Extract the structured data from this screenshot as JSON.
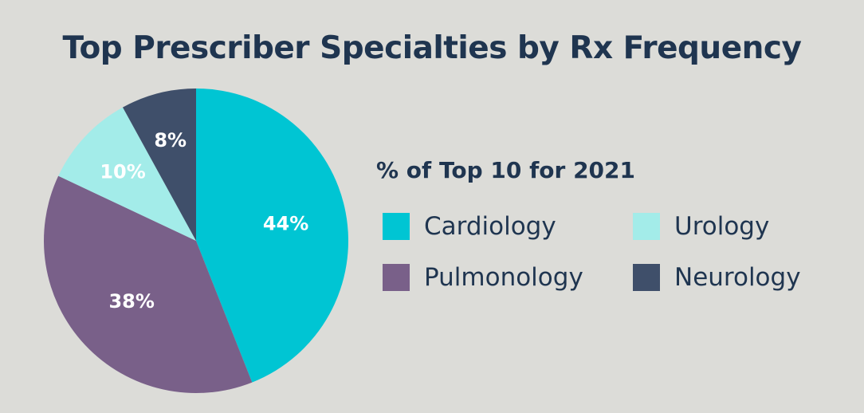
{
  "title": "Top Prescriber Specialties by Rx Frequency",
  "legend_title": "% of Top 10 for 2021",
  "colors": {
    "background": "#dcdcd8",
    "text": "#1f3550"
  },
  "chart_data": {
    "type": "pie",
    "title": "Top Prescriber Specialties by Rx Frequency",
    "legend_title": "% of Top 10 for 2021",
    "legend_placement": "right",
    "slices": [
      {
        "name": "Cardiology",
        "value": 44,
        "label": "44%",
        "color": "#00c5d3"
      },
      {
        "name": "Pulmonology",
        "value": 38,
        "label": "38%",
        "color": "#796089"
      },
      {
        "name": "Urology",
        "value": 10,
        "label": "10%",
        "color": "#a3ece9"
      },
      {
        "name": "Neurology",
        "value": 8,
        "label": "8%",
        "color": "#3f4f6a"
      }
    ]
  }
}
